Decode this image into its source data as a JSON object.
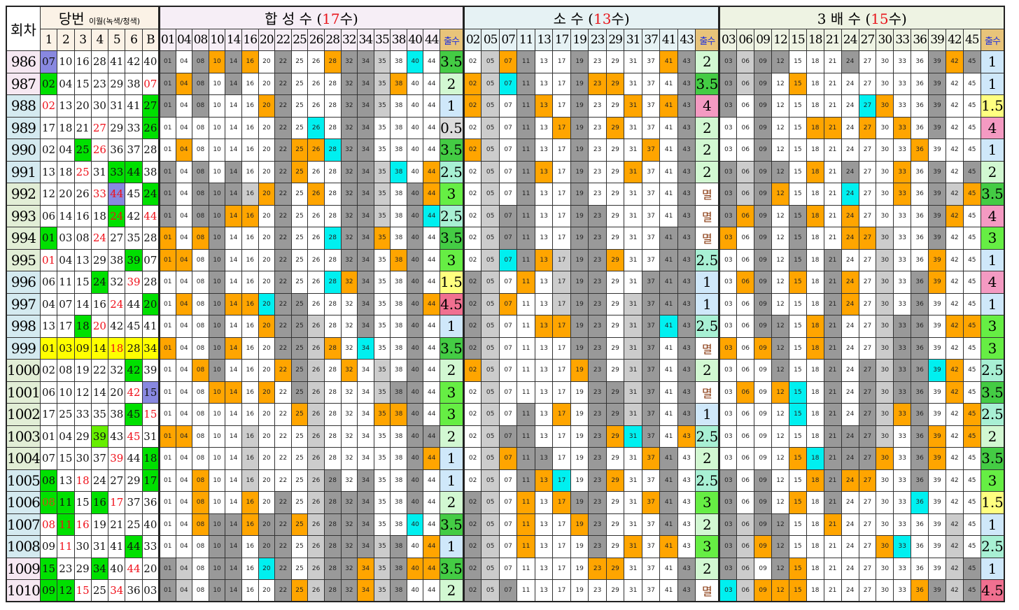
{
  "header": {
    "round_label": "회차",
    "draw_label": "당번",
    "draw_note": "이월(녹색/청색)",
    "draw_cols": [
      "1",
      "2",
      "3",
      "4",
      "5",
      "6",
      "B"
    ],
    "count_label": "출수"
  },
  "sections": [
    {
      "key": "h",
      "title_pre": "합 성 수 (",
      "title_num": "17",
      "title_post": "수)",
      "numbers": [
        "01",
        "04",
        "08",
        "10",
        "14",
        "16",
        "20",
        "22",
        "25",
        "26",
        "28",
        "32",
        "34",
        "35",
        "38",
        "40",
        "44"
      ],
      "counts": [
        "3.5",
        "2",
        "1",
        "0.5",
        "3.5",
        "2.5",
        "3",
        "2.5",
        "3.5",
        "3",
        "1.5",
        "4.5",
        "1",
        "3.5",
        "2",
        "3",
        "3",
        "2",
        "1",
        "1",
        "2",
        "3.5",
        "1",
        "3.5",
        "2"
      ]
    },
    {
      "key": "p",
      "title_pre": "소 수 (",
      "title_num": "13",
      "title_post": "수)",
      "numbers": [
        "02",
        "05",
        "07",
        "11",
        "13",
        "17",
        "19",
        "23",
        "29",
        "31",
        "37",
        "41",
        "43"
      ],
      "counts": [
        "2",
        "3.5",
        "4",
        "2",
        "2",
        "2",
        "멸",
        "멸",
        "멸",
        "2.5",
        "1",
        "1",
        "2.5",
        "멸",
        "2",
        "멸",
        "1",
        "2.5",
        "2",
        "2.5",
        "3",
        "2",
        "3",
        "2",
        "멸"
      ]
    },
    {
      "key": "t",
      "title_pre": "3 배 수 (",
      "title_num": "15",
      "title_post": "수)",
      "numbers": [
        "03",
        "06",
        "09",
        "12",
        "15",
        "18",
        "21",
        "24",
        "27",
        "30",
        "33",
        "36",
        "39",
        "42",
        "45"
      ],
      "counts": [
        "1",
        "1",
        "1.5",
        "4",
        "1",
        "2",
        "3.5",
        "4",
        "3",
        "1",
        "4",
        "1",
        "3",
        "3",
        "2.5",
        "3.5",
        "2.5",
        "2",
        "3.5",
        "3",
        "1.5",
        "1",
        "2.5",
        "1",
        "4.5"
      ]
    }
  ],
  "rounds": [
    {
      "r": "986",
      "lb": "p",
      "n": [
        "07",
        "10",
        "16",
        "28",
        "41",
        "42",
        "40"
      ],
      "m": [
        "b",
        "",
        "",
        "",
        "",
        "",
        ""
      ]
    },
    {
      "r": "987",
      "lb": "p",
      "n": [
        "02",
        "04",
        "15",
        "23",
        "29",
        "38",
        "07"
      ],
      "m": [
        "g",
        "",
        "",
        "",
        "",
        "",
        "r"
      ]
    },
    {
      "r": "988",
      "lb": "b",
      "n": [
        "02",
        "13",
        "20",
        "30",
        "31",
        "41",
        "27"
      ],
      "m": [
        "r",
        "",
        "",
        "",
        "",
        "",
        "g"
      ]
    },
    {
      "r": "989",
      "lb": "b",
      "n": [
        "17",
        "18",
        "21",
        "27",
        "29",
        "33",
        "26"
      ],
      "m": [
        "",
        "",
        "",
        "r",
        "",
        "",
        "g"
      ]
    },
    {
      "r": "990",
      "lb": "b",
      "n": [
        "02",
        "04",
        "25",
        "26",
        "36",
        "37",
        "28"
      ],
      "m": [
        "",
        "",
        "g",
        "r",
        "",
        "",
        ""
      ]
    },
    {
      "r": "991",
      "lb": "b",
      "n": [
        "13",
        "18",
        "25",
        "31",
        "33",
        "44",
        "38"
      ],
      "m": [
        "",
        "",
        "r",
        "",
        "g",
        "g",
        ""
      ]
    },
    {
      "r": "992",
      "lb": "g",
      "n": [
        "12",
        "20",
        "26",
        "33",
        "44",
        "45",
        "24"
      ],
      "m": [
        "",
        "",
        "",
        "r",
        "b r",
        "",
        "g"
      ]
    },
    {
      "r": "993",
      "lb": "g",
      "n": [
        "06",
        "14",
        "16",
        "18",
        "24",
        "42",
        "44"
      ],
      "m": [
        "",
        "",
        "",
        "",
        "g r",
        "",
        "r"
      ]
    },
    {
      "r": "994",
      "lb": "g",
      "n": [
        "01",
        "03",
        "08",
        "24",
        "27",
        "35",
        "28"
      ],
      "m": [
        "g",
        "",
        "",
        "r",
        "",
        "",
        ""
      ]
    },
    {
      "r": "995",
      "lb": "g",
      "n": [
        "01",
        "04",
        "13",
        "29",
        "38",
        "39",
        "07"
      ],
      "m": [
        "r",
        "",
        "",
        "",
        "",
        "g",
        ""
      ]
    },
    {
      "r": "996",
      "lb": "b",
      "n": [
        "06",
        "11",
        "15",
        "24",
        "32",
        "39",
        "28"
      ],
      "m": [
        "",
        "",
        "",
        "g",
        "",
        "r",
        ""
      ]
    },
    {
      "r": "997",
      "lb": "b",
      "n": [
        "04",
        "07",
        "14",
        "16",
        "24",
        "44",
        "20"
      ],
      "m": [
        "",
        "",
        "",
        "",
        "r",
        "",
        "g"
      ]
    },
    {
      "r": "998",
      "lb": "b",
      "n": [
        "13",
        "17",
        "18",
        "20",
        "42",
        "45",
        "41"
      ],
      "m": [
        "",
        "",
        "g",
        "r",
        "",
        "",
        ""
      ]
    },
    {
      "r": "999",
      "lb": "b",
      "n": [
        "01",
        "03",
        "09",
        "14",
        "18",
        "28",
        "34"
      ],
      "m": [
        "y",
        "y",
        "y",
        "y",
        "y r",
        "y",
        "y"
      ]
    },
    {
      "r": "1000",
      "lb": "g",
      "n": [
        "02",
        "08",
        "19",
        "22",
        "32",
        "42",
        "39"
      ],
      "m": [
        "",
        "",
        "",
        "",
        "",
        "g",
        ""
      ]
    },
    {
      "r": "1001",
      "lb": "g",
      "n": [
        "06",
        "10",
        "12",
        "14",
        "20",
        "42",
        "15"
      ],
      "m": [
        "",
        "",
        "",
        "",
        "",
        "r",
        "b"
      ]
    },
    {
      "r": "1002",
      "lb": "g",
      "n": [
        "17",
        "25",
        "33",
        "35",
        "38",
        "45",
        "15"
      ],
      "m": [
        "",
        "",
        "",
        "",
        "",
        "g",
        "r"
      ]
    },
    {
      "r": "1003",
      "lb": "g",
      "n": [
        "01",
        "04",
        "29",
        "39",
        "43",
        "45",
        "31"
      ],
      "m": [
        "",
        "",
        "",
        "g2",
        "",
        "r",
        ""
      ]
    },
    {
      "r": "1004",
      "lb": "g",
      "n": [
        "07",
        "15",
        "30",
        "37",
        "39",
        "44",
        "18"
      ],
      "m": [
        "",
        "",
        "",
        "",
        "r",
        "",
        "g"
      ]
    },
    {
      "r": "1005",
      "lb": "b",
      "n": [
        "08",
        "13",
        "18",
        "24",
        "27",
        "29",
        "17"
      ],
      "m": [
        "g",
        "",
        "r",
        "",
        "",
        "",
        "g"
      ]
    },
    {
      "r": "1006",
      "lb": "b",
      "n": [
        "08",
        "11",
        "15",
        "16",
        "17",
        "37",
        "36"
      ],
      "m": [
        "g o",
        "g",
        "",
        "g",
        "r",
        "",
        ""
      ]
    },
    {
      "r": "1007",
      "lb": "b",
      "n": [
        "08",
        "11",
        "16",
        "19",
        "21",
        "25",
        "40"
      ],
      "m": [
        "r",
        "g r",
        "r",
        "",
        "",
        "",
        ""
      ]
    },
    {
      "r": "1008",
      "lb": "b",
      "n": [
        "09",
        "11",
        "30",
        "31",
        "41",
        "44",
        "33"
      ],
      "m": [
        "",
        "r",
        "",
        "",
        "",
        "g",
        ""
      ]
    },
    {
      "r": "1009",
      "lb": "p",
      "n": [
        "15",
        "23",
        "29",
        "34",
        "40",
        "44",
        "20"
      ],
      "m": [
        "g",
        "",
        "",
        "g",
        "",
        "r",
        ""
      ]
    },
    {
      "r": "1010",
      "lb": "p",
      "n": [
        "09",
        "12",
        "15",
        "25",
        "34",
        "36",
        "03"
      ],
      "m": [
        "g",
        "g",
        "r",
        "",
        "r",
        "",
        ""
      ]
    }
  ],
  "colors": {
    "hit": "#ffa500",
    "bonus": "#00f0f0",
    "count_bg": {
      "0.5": "#dcdcdc",
      "1": "#cfe8fa",
      "1.5": "#ffff80",
      "2": "#d2f8d2",
      "2.5": "#a8f0d4",
      "3": "#66ee44",
      "3.5": "#44cc44",
      "4": "#f49ac2",
      "4.5": "#f07090",
      "멸": "#ffffff"
    },
    "zero_text": "#8a3a10"
  }
}
